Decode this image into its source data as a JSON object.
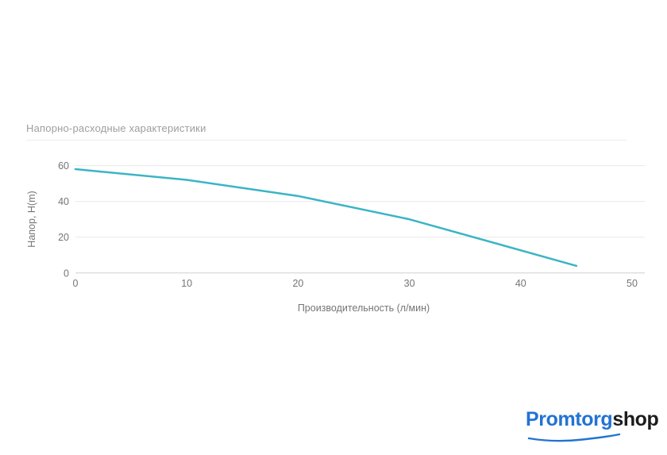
{
  "chart_data": {
    "type": "line",
    "title": "Напорно-расходные характеристики",
    "xlabel": "Производительность (л/мин)",
    "ylabel": "Напор, H(m)",
    "x": [
      0,
      10,
      20,
      30,
      45
    ],
    "y": [
      58,
      52,
      43,
      30,
      4
    ],
    "xlim": [
      0,
      50
    ],
    "ylim": [
      0,
      60
    ],
    "x_ticks": [
      0,
      10,
      20,
      30,
      40,
      50
    ],
    "y_ticks": [
      0,
      20,
      40,
      60
    ],
    "grid": true,
    "legend": false,
    "line_color": "#3bb4c6",
    "grid_color": "#e9e9e9",
    "axis_line_color": "#cfcfcf",
    "tick_label_color": "#757575",
    "axis_title_color": "#757575",
    "title_color": "#9e9e9e"
  },
  "logo": {
    "promtorg": "Promtorg",
    "shop": "shop",
    "promtorg_color": "#2273d3",
    "shop_color": "#1c1c1c"
  }
}
